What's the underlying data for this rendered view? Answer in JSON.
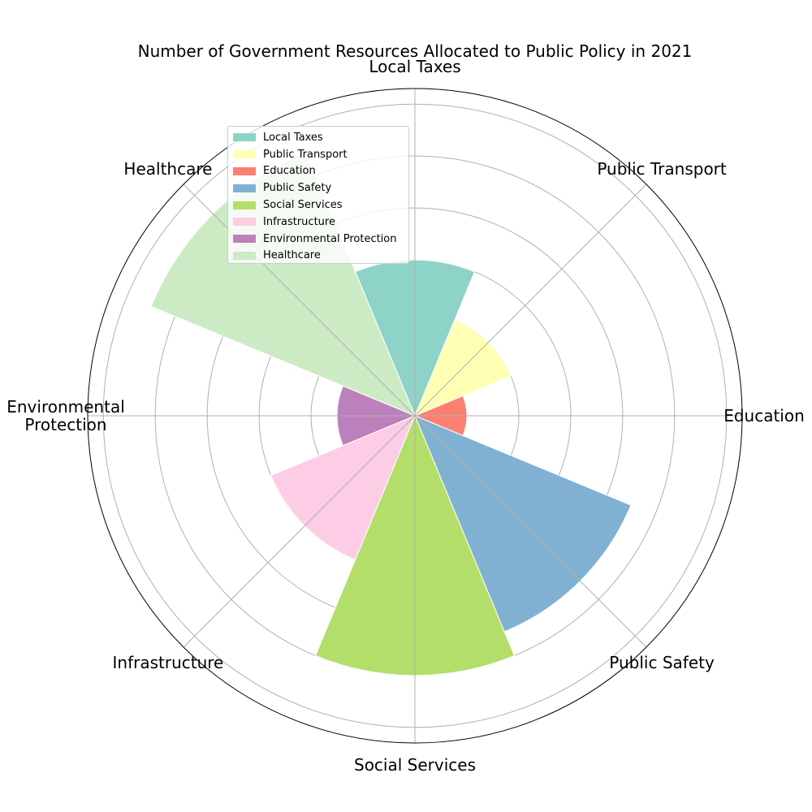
{
  "chart_data": {
    "type": "polar-bar",
    "title": "Number of Government Resources Allocated to Public Policy in 2021",
    "categories": [
      "Local Taxes",
      "Public Transport",
      "Education",
      "Public Safety",
      "Social Services",
      "Infrastructure",
      "Environmental Protection",
      "Healthcare"
    ],
    "tick_labels": [
      "Local Taxes",
      "Public Transport",
      "Education",
      "Public Safety",
      "Social Services",
      "Infrastructure",
      "Environmental\nProtection",
      "Healthcare"
    ],
    "values": [
      300,
      200,
      100,
      450,
      500,
      300,
      150,
      550
    ],
    "rmax": 630,
    "rgrid": [
      100,
      200,
      300,
      400,
      500,
      600
    ],
    "colors": [
      "#8dd3c7",
      "#ffffb3",
      "#fb8072",
      "#80b1d3",
      "#b3de69",
      "#fccde5",
      "#bc80bd",
      "#ccebc5"
    ],
    "legend": [
      "Local Taxes",
      "Public Transport",
      "Education",
      "Public Safety",
      "Social Services",
      "Infrastructure",
      "Environmental Protection",
      "Healthcare"
    ],
    "legend_placement": "upper-left",
    "grid": true
  }
}
